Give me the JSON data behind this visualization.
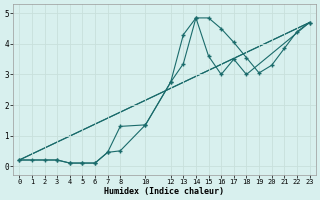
{
  "xlabel": "Humidex (Indice chaleur)",
  "bg_color": "#d8f0ee",
  "line_color": "#1a6b6b",
  "grid_color": "#c8e0dc",
  "xlim": [
    -0.5,
    23.5
  ],
  "ylim": [
    -0.3,
    5.3
  ],
  "xticks": [
    0,
    1,
    2,
    3,
    4,
    5,
    6,
    7,
    8,
    10,
    12,
    13,
    14,
    15,
    16,
    17,
    18,
    19,
    20,
    21,
    22,
    23
  ],
  "yticks": [
    0,
    1,
    2,
    3,
    4,
    5
  ],
  "line1_x": [
    0,
    1,
    2,
    3,
    4,
    5,
    6,
    7,
    8,
    10,
    12,
    13,
    14,
    15,
    16,
    17,
    18,
    19,
    20,
    21,
    22,
    23
  ],
  "line1_y": [
    0.2,
    0.2,
    0.2,
    0.2,
    0.1,
    0.1,
    0.1,
    0.45,
    1.3,
    1.35,
    2.75,
    4.3,
    4.85,
    4.85,
    4.5,
    4.05,
    3.55,
    3.05,
    3.3,
    3.85,
    4.4,
    4.7
  ],
  "line2_x": [
    0,
    3,
    4,
    5,
    6,
    7,
    8,
    10,
    12,
    13,
    14,
    15,
    16,
    17,
    18,
    23
  ],
  "line2_y": [
    0.2,
    0.2,
    0.1,
    0.1,
    0.1,
    0.45,
    0.5,
    1.35,
    2.75,
    3.35,
    4.85,
    3.6,
    3.0,
    3.5,
    3.0,
    4.7
  ],
  "line3_x": [
    0,
    23
  ],
  "line3_y": [
    0.2,
    4.7
  ],
  "line4_x": [
    0,
    23
  ],
  "line4_y": [
    0.2,
    4.7
  ]
}
